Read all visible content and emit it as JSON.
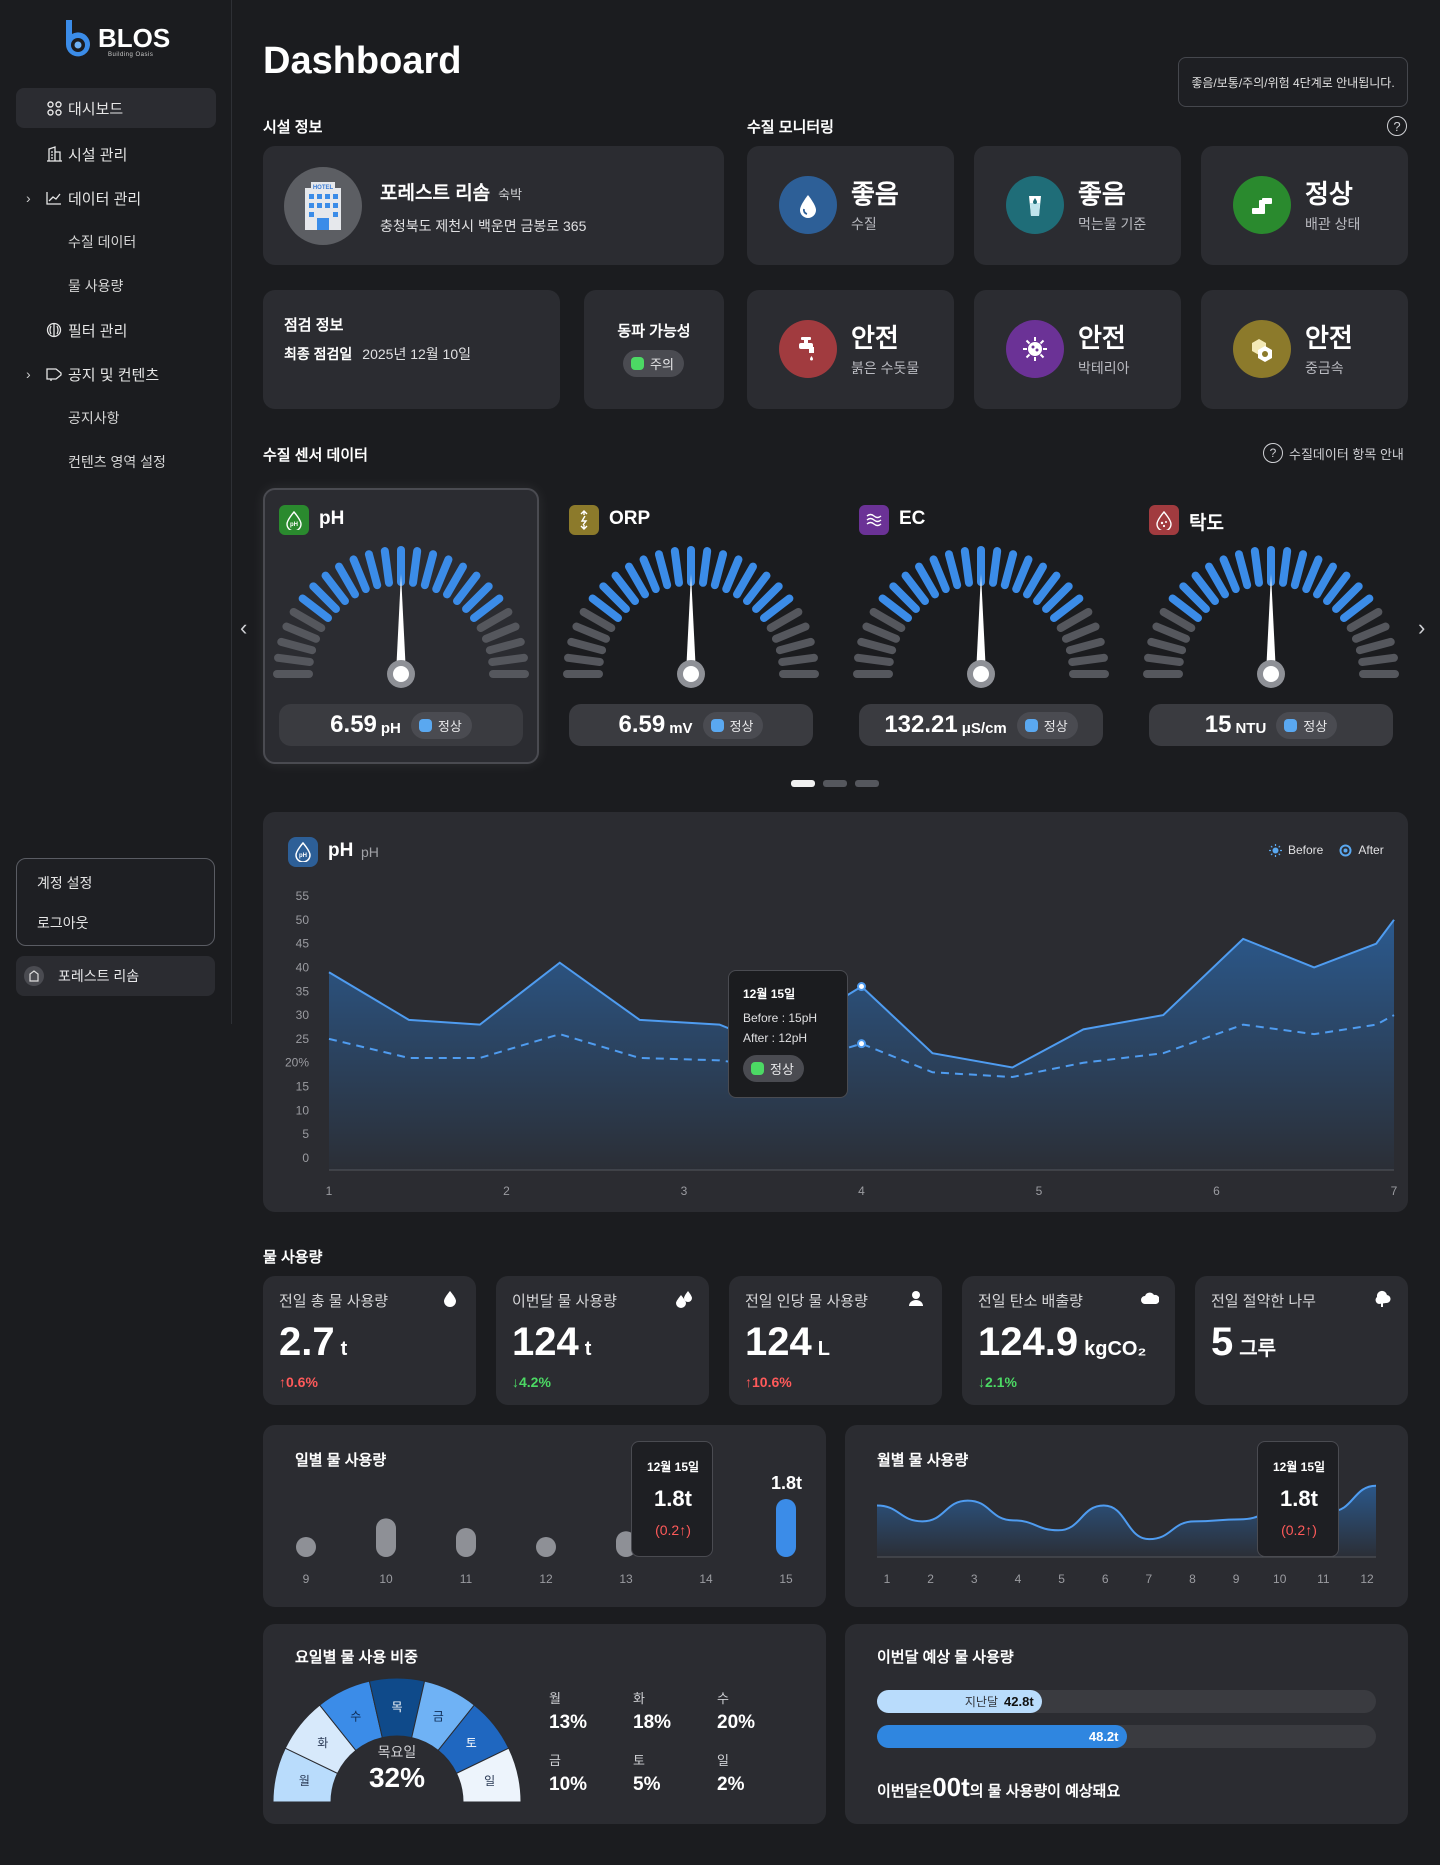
{
  "brand": {
    "name": "BLOS",
    "tagline": "Building Oasis"
  },
  "sidebar": {
    "items": [
      {
        "label": "대시보드",
        "icon": "grid-icon"
      },
      {
        "label": "시설 관리",
        "icon": "building-icon"
      },
      {
        "label": "데이터 관리",
        "icon": "trend-icon"
      },
      {
        "label": "수질 데이터"
      },
      {
        "label": "물 사용량"
      },
      {
        "label": "필터 관리",
        "icon": "filter-icon"
      },
      {
        "label": "공지 및 컨텐츠",
        "icon": "megaphone-icon"
      },
      {
        "label": "공지사항"
      },
      {
        "label": "컨텐츠 영역 설정"
      }
    ],
    "account_menu": [
      "계정 설정",
      "로그아웃"
    ],
    "facility_button": "포레스트 리솜"
  },
  "header": {
    "title": "Dashboard",
    "notice": "좋음/보통/주의/위험 4단계로 안내됩니다."
  },
  "facility": {
    "section": "시설 정보",
    "name": "포레스트 리솜",
    "type": "숙박",
    "address": "충청북도 제천시 백운면 금봉로 365",
    "hotel_sign": "HOTEL"
  },
  "inspection": {
    "section": "점검 정보",
    "label": "최종 점검일",
    "date": "2025년 12월 10일"
  },
  "freeze": {
    "title": "동파 가능성",
    "status": "주의",
    "status_color": "#4cd964"
  },
  "monitoring": {
    "section": "수질 모니터링",
    "help": "?",
    "cards": [
      {
        "value": "좋음",
        "label": "수질",
        "icon": "water-drop-icon",
        "color": "#2d5f97"
      },
      {
        "value": "좋음",
        "label": "먹는물 기준",
        "icon": "water-glass-icon",
        "color": "#1f6d78"
      },
      {
        "value": "정상",
        "label": "배관 상태",
        "icon": "pipe-icon",
        "color": "#2a8a2e"
      },
      {
        "value": "안전",
        "label": "붉은 수돗물",
        "icon": "faucet-icon",
        "color": "#a13b3f"
      },
      {
        "value": "안전",
        "label": "박테리아",
        "icon": "bacteria-icon",
        "color": "#6b3296"
      },
      {
        "value": "안전",
        "label": "중금속",
        "icon": "metal-icon",
        "color": "#8c7a2b"
      }
    ]
  },
  "sensors": {
    "section": "수질 센서 데이터",
    "guide": "수질데이터 항목 안내",
    "items": [
      {
        "name": "pH",
        "value": "6.59",
        "unit": "pH",
        "status": "정상",
        "icon": "ph-icon",
        "color": "#2a8a2e",
        "level": 0.5
      },
      {
        "name": "ORP",
        "value": "6.59",
        "unit": "mV",
        "status": "정상",
        "icon": "orp-icon",
        "color": "#8c7a2b",
        "level": 0.5
      },
      {
        "name": "EC",
        "value": "132.21",
        "unit": "μS/cm",
        "status": "정상",
        "icon": "ec-icon",
        "color": "#6b3296",
        "level": 0.5
      },
      {
        "name": "탁도",
        "value": "15",
        "unit": "NTU",
        "status": "정상",
        "icon": "turbidity-icon",
        "color": "#a13b3f",
        "level": 0.5
      }
    ],
    "status_color": "#5aa8f0",
    "pages": 3,
    "active_page": 1
  },
  "ph_chart": {
    "title": "pH",
    "subtitle": "pH",
    "legend": [
      "Before",
      "After"
    ],
    "tooltip": {
      "date": "12월 15일",
      "before": "Before : 15pH",
      "after": "After : 12pH",
      "status": "정상"
    }
  },
  "chart_data": [
    {
      "type": "area",
      "title": "pH",
      "x": [
        1,
        1.45,
        1.85,
        2.3,
        2.75,
        3.2,
        3.4,
        3.65,
        4,
        4.4,
        4.85,
        5.25,
        5.7,
        6.15,
        6.55,
        6.9,
        7
      ],
      "xticks": [
        "1",
        "2",
        "3",
        "4",
        "5",
        "6",
        "7"
      ],
      "yticks": [
        "0",
        "5",
        "10",
        "15",
        "20%",
        "25",
        "30",
        "35",
        "40",
        "45",
        "50",
        "55"
      ],
      "ylim": [
        0,
        55
      ],
      "series": [
        {
          "name": "Before",
          "values": [
            39,
            29,
            28,
            41,
            29,
            28,
            25,
            28,
            36,
            22,
            19,
            27,
            30,
            46,
            40,
            45,
            50
          ]
        },
        {
          "name": "After",
          "values": [
            25,
            21,
            21,
            26,
            21,
            20.5,
            19.5,
            20,
            24,
            18,
            17,
            20,
            22,
            28,
            26,
            28,
            30
          ]
        }
      ]
    },
    {
      "type": "bar",
      "title": "일별 물 사용량",
      "categories": [
        "9",
        "10",
        "11",
        "12",
        "13",
        "14",
        "15"
      ],
      "values": [
        0.4,
        1.2,
        0.9,
        0.2,
        0.8,
        null,
        1.8
      ],
      "highlight_label": "1.8t"
    },
    {
      "type": "area",
      "title": "월별 물 사용량",
      "categories": [
        "1",
        "2",
        "3",
        "4",
        "5",
        "6",
        "7",
        "8",
        "9",
        "10",
        "11",
        "12"
      ],
      "values": [
        52,
        36,
        57,
        37,
        27,
        52,
        18,
        36,
        38,
        48,
        46,
        72
      ]
    },
    {
      "type": "pie",
      "title": "요일별 물 사용 비중",
      "categories": [
        "월",
        "화",
        "수",
        "목",
        "금",
        "토",
        "일"
      ],
      "values": [
        13,
        18,
        20,
        32,
        10,
        5,
        2
      ]
    }
  ],
  "water_usage": {
    "section": "물 사용량",
    "stats": [
      {
        "title": "전일 총 물 사용량",
        "value": "2.7",
        "unit": "t",
        "change": "0.6%",
        "dir": "↑",
        "icon": "drop-icon"
      },
      {
        "title": "이번달 물 사용량",
        "value": "124",
        "unit": "t",
        "change": "4.2%",
        "dir": "↓",
        "icon": "drops-icon"
      },
      {
        "title": "전일 인당 물 사용량",
        "value": "124",
        "unit": "L",
        "change": "10.6%",
        "dir": "↑",
        "icon": "person-icon"
      },
      {
        "title": "전일 탄소 배출량",
        "value": "124.9",
        "unit": "kgCO₂",
        "change": "2.1%",
        "dir": "↓",
        "icon": "cloud-icon"
      },
      {
        "title": "전일 절약한 나무",
        "value": "5",
        "unit": "그루",
        "change": "",
        "dir": "",
        "icon": "tree-icon"
      }
    ]
  },
  "daily": {
    "title": "일별 물 사용량",
    "tooltip": {
      "date": "12월 15일",
      "value": "1.8t",
      "change": "(0.2↑)"
    },
    "bar_label": "1.8t"
  },
  "monthly": {
    "title": "월별 물 사용량",
    "tooltip": {
      "date": "12월 15일",
      "value": "1.8t",
      "change": "(0.2↑)"
    }
  },
  "weekday": {
    "title": "요일별 물 사용 비중",
    "center_day": "목요일",
    "center_pct": "32%",
    "legend": [
      {
        "day": "월",
        "pct": "13%"
      },
      {
        "day": "화",
        "pct": "18%"
      },
      {
        "day": "수",
        "pct": "20%"
      },
      {
        "day": "금",
        "pct": "10%"
      },
      {
        "day": "토",
        "pct": "5%"
      },
      {
        "day": "일",
        "pct": "2%"
      }
    ]
  },
  "forecast": {
    "title": "이번달 예상 물 사용량",
    "last_month_label": "지난달",
    "last_month_value": "42.8t",
    "last_month_level": 0.33,
    "this_month_value": "48.2t",
    "this_month_level": 0.5,
    "footer_prefix": "이번달은 ",
    "footer_value": "00t",
    "footer_suffix": "의 물 사용량이 예상돼요"
  }
}
